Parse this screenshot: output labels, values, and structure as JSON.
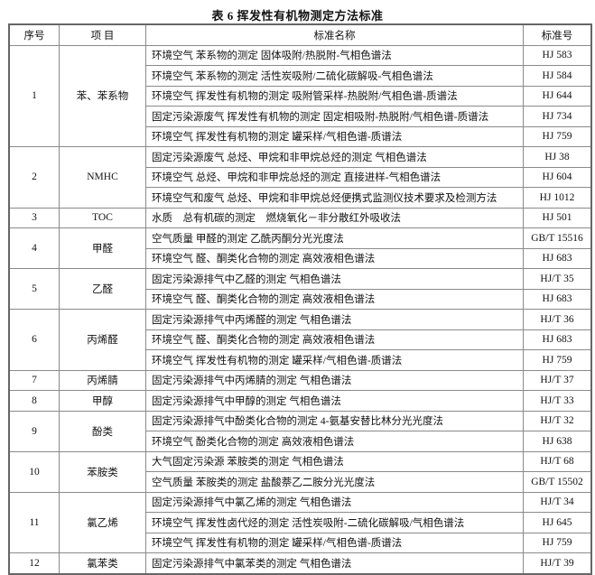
{
  "title": "表 6 挥发性有机物测定方法标准",
  "headers": {
    "no": "序号",
    "item": "项 目",
    "name": "标准名称",
    "code": "标准号"
  },
  "groups": [
    {
      "no": "1",
      "item": "苯、苯系物",
      "rows": [
        {
          "name": "环境空气 苯系物的测定 固体吸附/热脱附-气相色谱法",
          "code": "HJ 583"
        },
        {
          "name": "环境空气 苯系物的测定 活性炭吸附/二硫化碳解吸-气相色谱法",
          "code": "HJ 584"
        },
        {
          "name": "环境空气 挥发性有机物的测定 吸附管采样-热脱附/气相色谱-质谱法",
          "code": "HJ 644"
        },
        {
          "name": "固定污染源废气 挥发性有机物的测定 固定相吸附-热脱附/气相色谱-质谱法",
          "code": "HJ 734"
        },
        {
          "name": "环境空气 挥发性有机物的测定 罐采样/气相色谱-质谱法",
          "code": "HJ 759"
        }
      ]
    },
    {
      "no": "2",
      "item": "NMHC",
      "rows": [
        {
          "name": "固定污染源废气 总烃、甲烷和非甲烷总烃的测定 气相色谱法",
          "code": "HJ 38"
        },
        {
          "name": "环境空气 总烃、甲烷和非甲烷总烃的测定 直接进样-气相色谱法",
          "code": "HJ 604"
        },
        {
          "name": "环境空气和废气 总烃、甲烷和非甲烷总烃便携式监测仪技术要求及检测方法",
          "code": "HJ 1012"
        }
      ]
    },
    {
      "no": "3",
      "item": "TOC",
      "rows": [
        {
          "name": "水质　总有机碳的测定　燃烧氧化－非分散红外吸收法",
          "code": "HJ 501"
        }
      ]
    },
    {
      "no": "4",
      "item": "甲醛",
      "rows": [
        {
          "name": "空气质量 甲醛的测定 乙酰丙酮分光光度法",
          "code": "GB/T 15516"
        },
        {
          "name": "环境空气 醛、酮类化合物的测定 高效液相色谱法",
          "code": "HJ 683"
        }
      ]
    },
    {
      "no": "5",
      "item": "乙醛",
      "rows": [
        {
          "name": "固定污染源排气中乙醛的测定 气相色谱法",
          "code": "HJ/T 35"
        },
        {
          "name": "环境空气 醛、酮类化合物的测定 高效液相色谱法",
          "code": "HJ 683"
        }
      ]
    },
    {
      "no": "6",
      "item": "丙烯醛",
      "rows": [
        {
          "name": "固定污染源排气中丙烯醛的测定 气相色谱法",
          "code": "HJ/T 36"
        },
        {
          "name": "环境空气 醛、酮类化合物的测定 高效液相色谱法",
          "code": "HJ 683"
        },
        {
          "name": "环境空气 挥发性有机物的测定 罐采样/气相色谱-质谱法",
          "code": "HJ 759"
        }
      ]
    },
    {
      "no": "7",
      "item": "丙烯腈",
      "rows": [
        {
          "name": "固定污染源排气中丙烯腈的测定 气相色谱法",
          "code": "HJ/T 37"
        }
      ]
    },
    {
      "no": "8",
      "item": "甲醇",
      "rows": [
        {
          "name": "固定污染源排气中甲醇的测定 气相色谱法",
          "code": "HJ/T 33"
        }
      ]
    },
    {
      "no": "9",
      "item": "酚类",
      "rows": [
        {
          "name": "固定污染源排气中酚类化合物的测定 4-氨基安替比林分光光度法",
          "code": "HJ/T 32"
        },
        {
          "name": "环境空气 酚类化合物的测定 高效液相色谱法",
          "code": "HJ 638"
        }
      ]
    },
    {
      "no": "10",
      "item": "苯胺类",
      "rows": [
        {
          "name": "大气固定污染源 苯胺类的测定 气相色谱法",
          "code": "HJ/T 68"
        },
        {
          "name": "空气质量 苯胺类的测定 盐酸萘乙二胺分光光度法",
          "code": "GB/T 15502"
        }
      ]
    },
    {
      "no": "11",
      "item": "氯乙烯",
      "rows": [
        {
          "name": "固定污染源排气中氯乙烯的测定 气相色谱法",
          "code": "HJ/T 34"
        },
        {
          "name": "环境空气 挥发性卤代烃的测定 活性炭吸附-二硫化碳解吸/气相色谱法",
          "code": "HJ 645"
        },
        {
          "name": "环境空气 挥发性有机物的测定 罐采样/气相色谱-质谱法",
          "code": "HJ 759"
        }
      ]
    },
    {
      "no": "12",
      "item": "氯苯类",
      "rows": [
        {
          "name": "固定污染源排气中氯苯类的测定 气相色谱法",
          "code": "HJ/T 39"
        }
      ]
    }
  ]
}
